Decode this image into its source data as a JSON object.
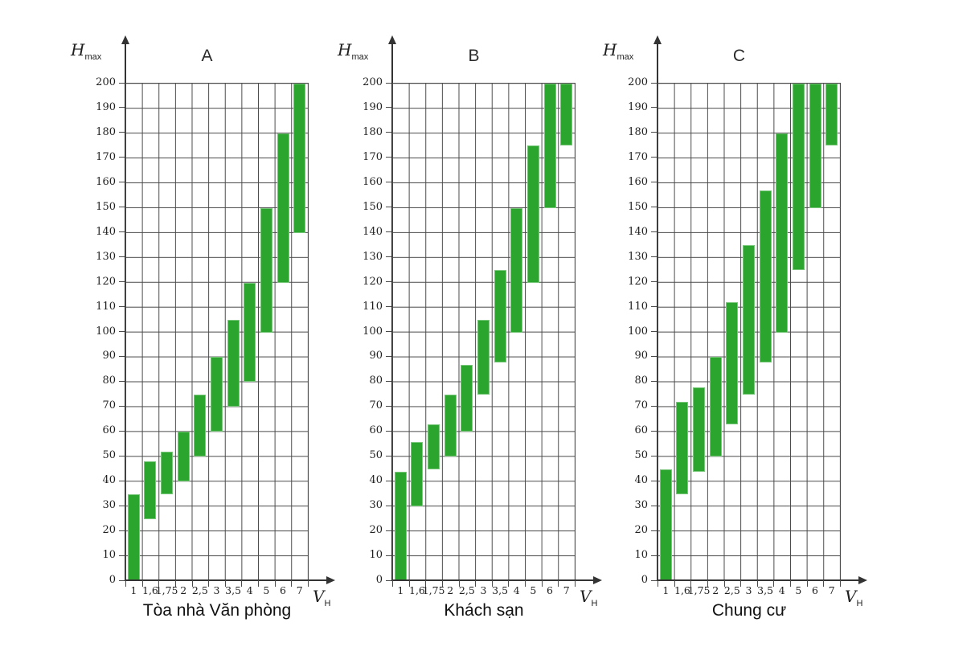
{
  "figure": {
    "background": "#ffffff",
    "grid_color": "#4a4a4a",
    "axis_color": "#333333",
    "bar_fill": "#2ba52e",
    "bar_edge": "#79c77b",
    "text_color": "#1f1f1f"
  },
  "axis_labels": {
    "y_base": "H",
    "y_sub": "max",
    "x_base": "V",
    "x_sub": "H"
  },
  "chart_data": [
    {
      "type": "bar",
      "subtype": "floating-range-columns",
      "title": "A",
      "caption": "Tòa nhà Văn phòng",
      "ylabel": "Hmax",
      "xlabel": "VH",
      "ylim": [
        0,
        200
      ],
      "ytick_step": 10,
      "grid": true,
      "categories": [
        "1",
        "1,6",
        "1,75",
        "2",
        "2,5",
        "3",
        "3,5",
        "4",
        "5",
        "6",
        "7"
      ],
      "ranges": [
        [
          0,
          35
        ],
        [
          25,
          48
        ],
        [
          35,
          52
        ],
        [
          40,
          60
        ],
        [
          50,
          75
        ],
        [
          60,
          90
        ],
        [
          70,
          105
        ],
        [
          80,
          120
        ],
        [
          100,
          150
        ],
        [
          120,
          180
        ],
        [
          140,
          200
        ]
      ]
    },
    {
      "type": "bar",
      "subtype": "floating-range-columns",
      "title": "B",
      "caption": "Khách sạn",
      "ylabel": "Hmax",
      "xlabel": "VH",
      "ylim": [
        0,
        200
      ],
      "ytick_step": 10,
      "grid": true,
      "categories": [
        "1",
        "1,6",
        "1,75",
        "2",
        "2,5",
        "3",
        "3,5",
        "4",
        "5",
        "6",
        "7"
      ],
      "ranges": [
        [
          0,
          44
        ],
        [
          30,
          56
        ],
        [
          45,
          63
        ],
        [
          50,
          75
        ],
        [
          60,
          87
        ],
        [
          75,
          105
        ],
        [
          88,
          125
        ],
        [
          100,
          150
        ],
        [
          120,
          175
        ],
        [
          150,
          200
        ],
        [
          175,
          200
        ]
      ]
    },
    {
      "type": "bar",
      "subtype": "floating-range-columns",
      "title": "C",
      "caption": "Chung cư",
      "ylabel": "Hmax",
      "xlabel": "VH",
      "ylim": [
        0,
        200
      ],
      "ytick_step": 10,
      "grid": true,
      "categories": [
        "1",
        "1,6",
        "1,75",
        "2",
        "2,5",
        "3",
        "3,5",
        "4",
        "5",
        "6",
        "7"
      ],
      "ranges": [
        [
          0,
          45
        ],
        [
          35,
          72
        ],
        [
          44,
          78
        ],
        [
          50,
          90
        ],
        [
          63,
          112
        ],
        [
          75,
          135
        ],
        [
          88,
          157
        ],
        [
          100,
          180
        ],
        [
          125,
          200
        ],
        [
          150,
          200
        ],
        [
          175,
          200
        ]
      ]
    }
  ]
}
